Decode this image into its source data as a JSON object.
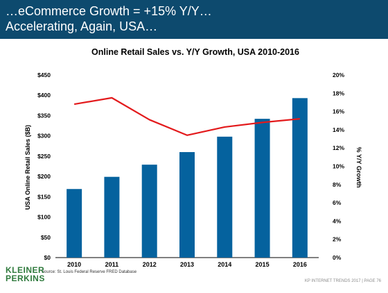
{
  "header": {
    "line1": "…eCommerce Growth = +15% Y/Y…",
    "line2": "Accelerating, Again, USA…",
    "bg_color": "#0d4a6e"
  },
  "chart_data": {
    "type": "bar",
    "title": "Online Retail Sales vs. Y/Y Growth, USA 2010-2016",
    "categories": [
      "2010",
      "2011",
      "2012",
      "2013",
      "2014",
      "2015",
      "2016"
    ],
    "ylabel": "USA Online Retail Sales ($B)",
    "y2label": "% Y/Y Growth",
    "ylim": [
      0,
      450
    ],
    "y_ticks": [
      "$0",
      "$50",
      "$100",
      "$150",
      "$200",
      "$250",
      "$300",
      "$350",
      "$400",
      "$450"
    ],
    "y2lim": [
      0,
      20
    ],
    "y2_ticks": [
      "0%",
      "2%",
      "4%",
      "6%",
      "8%",
      "10%",
      "12%",
      "14%",
      "16%",
      "18%",
      "20%"
    ],
    "series": [
      {
        "type": "bar",
        "axis": "left",
        "values": [
          169,
          199,
          229,
          260,
          298,
          342,
          393
        ],
        "color": "#05629e"
      },
      {
        "type": "line",
        "axis": "right",
        "values": [
          16.8,
          17.5,
          15.1,
          13.4,
          14.3,
          14.8,
          15.2
        ],
        "color": "#e31a1c"
      }
    ],
    "grid": false
  },
  "source": "Source: St. Louis Federal Reserve FRED Database",
  "logo": {
    "line1": "KLEINER",
    "line2": "PERKINS",
    "color": "#2f7a3d"
  },
  "footer": "KP INTERNET TRENDS 2017  |  PAGE 76"
}
